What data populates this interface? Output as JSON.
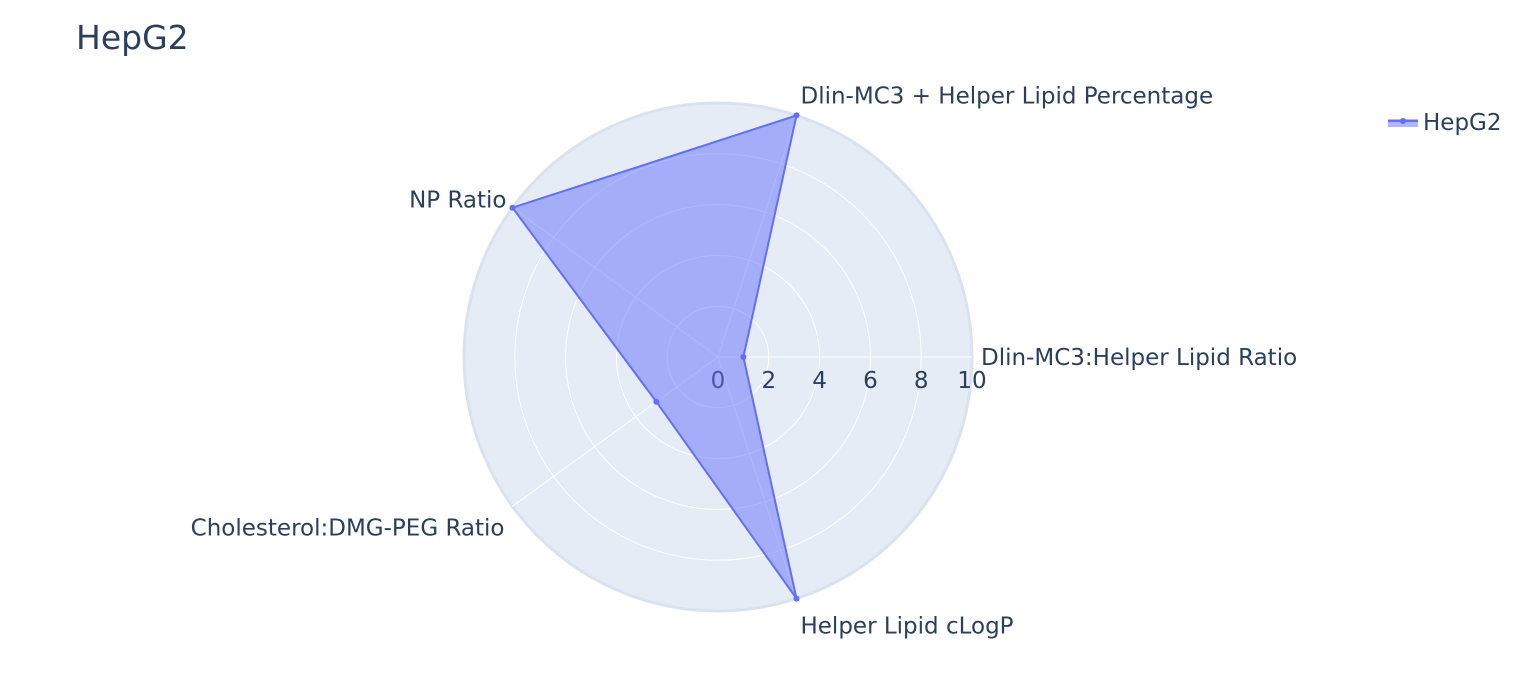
{
  "chart_data": {
    "type": "radar",
    "title": "HepG2",
    "categories": [
      "Dlin-MC3:Helper Lipid Ratio",
      "Dlin-MC3 + Helper Lipid Percentage",
      "NP Ratio",
      "Cholesterol:DMG-PEG Ratio",
      "Helper Lipid cLogP"
    ],
    "series": [
      {
        "name": "HepG2",
        "values": [
          1,
          10,
          10,
          3,
          10
        ],
        "line_color": "#636efa",
        "fill_color": "#636efa"
      }
    ],
    "radial_range": [
      0,
      10
    ],
    "radial_ticks": [
      "0",
      "2",
      "4",
      "6",
      "8",
      "10"
    ],
    "angular_direction": "counterclockwise",
    "grid": true,
    "legend": "top-right",
    "background_color": "#e5ecf6"
  }
}
